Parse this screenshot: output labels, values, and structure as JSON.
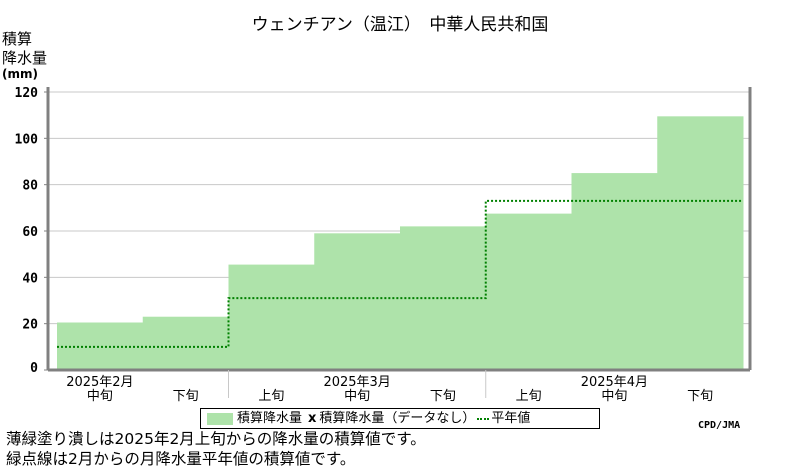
{
  "title": "ウェンチアン（温江）　中華人民共和国",
  "y_unit_label": [
    "積算",
    "降水量"
  ],
  "y_unit_mm": "(mm)",
  "legend": {
    "bar_label": "積算降水量",
    "missing_marker": "x",
    "missing_label": "積算降水量（データなし）",
    "normal_label": "平年値"
  },
  "credit": "CPD/JMA",
  "notes": [
    "薄緑塗り潰しは2025年2月上旬からの降水量の積算値です。",
    "緑点線は2月からの月降水量平年値の積算値です。"
  ],
  "colors": {
    "bar": "#aee3aa",
    "normal_line": "#008000",
    "axis": "#808080",
    "grid": "#c8c8c8"
  },
  "chart_data": {
    "type": "bar",
    "categories": [
      "中旬",
      "下旬",
      "上旬",
      "中旬",
      "下旬",
      "上旬",
      "中旬",
      "下旬"
    ],
    "month_labels": [
      {
        "label": "2025年2月",
        "category_index": 0
      },
      {
        "label": "2025年3月",
        "category_index": 3
      },
      {
        "label": "2025年4月",
        "category_index": 6
      }
    ],
    "series": [
      {
        "name": "積算降水量",
        "values": [
          20.5,
          23,
          45.5,
          59,
          62,
          67.5,
          85,
          109.5
        ]
      },
      {
        "name": "平年値",
        "type": "step",
        "values": [
          10,
          10,
          31,
          31,
          31,
          73,
          73,
          73
        ]
      }
    ],
    "yticks": [
      0,
      20,
      40,
      60,
      80,
      100,
      120
    ],
    "ylim": [
      0,
      120
    ],
    "grid": "horizontal"
  }
}
